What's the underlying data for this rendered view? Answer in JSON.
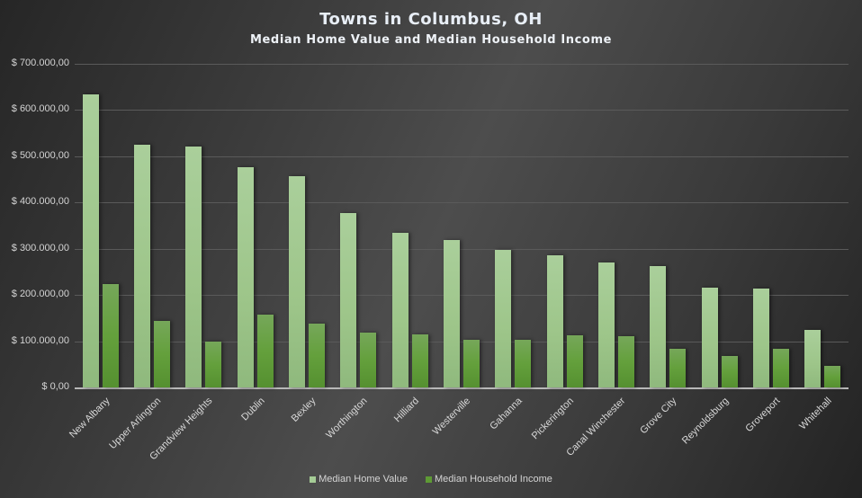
{
  "chart_data": {
    "type": "bar",
    "title": "Towns in Columbus,  OH",
    "subtitle": "Median Home Value and Median Household Income",
    "xlabel": "",
    "ylabel": "",
    "ylim": [
      0,
      700000
    ],
    "yticks": [
      "$ 0,00",
      "$ 100.000,00",
      "$ 200.000,00",
      "$ 300.000,00",
      "$ 400.000,00",
      "$ 500.000,00",
      "$ 600.000,00",
      "$ 700.000,00"
    ],
    "grid": true,
    "legend_position": "bottom",
    "categories": [
      "New Albany",
      "Upper Arlington",
      "Grandview Heights",
      "Dublin",
      "Bexley",
      "Worthington",
      "Hilliard",
      "Westerville",
      "Gahanna",
      "Pickerington",
      "Canal Winchester",
      "Grove City",
      "Reynoldsburg",
      "Groveport",
      "Whitehall"
    ],
    "series": [
      {
        "name": "Median Home Value",
        "color": "#a5cc96",
        "values": [
          634000,
          525000,
          521000,
          476000,
          457000,
          377000,
          334000,
          319000,
          297000,
          286000,
          270000,
          262000,
          216000,
          214000,
          124000
        ]
      },
      {
        "name": "Median Household Income",
        "color": "#5e9a35",
        "values": [
          224000,
          144000,
          99000,
          157000,
          138000,
          119000,
          115000,
          103000,
          103000,
          113000,
          111000,
          84000,
          68000,
          84000,
          47000
        ]
      }
    ]
  }
}
